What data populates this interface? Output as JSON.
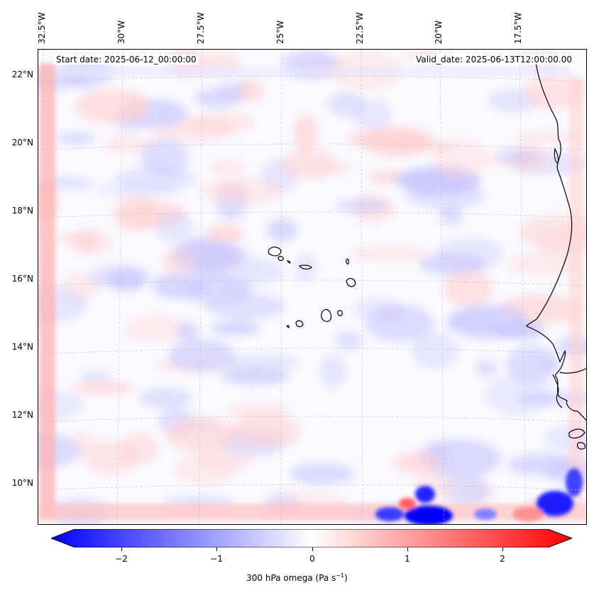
{
  "header": {
    "start_date": "Start date: 2025-06-12_00:00:00",
    "valid_date": "Valid_date: 2025-06-13T12:00:00.00"
  },
  "longitude_labels": [
    "32.5°W",
    "30°W",
    "27.5°W",
    "25°W",
    "22.5°W",
    "20°W",
    "17.5°W"
  ],
  "latitude_labels": [
    "22°N",
    "20°N",
    "18°N",
    "16°N",
    "14°N",
    "12°N",
    "10°N"
  ],
  "colorbar": {
    "label_prefix": "300 hPa omega (Pa s",
    "label_exp": "−1",
    "label_suffix": ")",
    "ticks": [
      "−2",
      "−1",
      "0",
      "1",
      "2"
    ],
    "range": [
      -2.7,
      2.7
    ],
    "colormap": "bwr",
    "extend": "both"
  },
  "colors": {
    "negative": "#0000ff",
    "neutral": "#ffffff",
    "positive": "#ff0000",
    "coastline": "#000000",
    "gridline": "#bbbbbb"
  }
}
